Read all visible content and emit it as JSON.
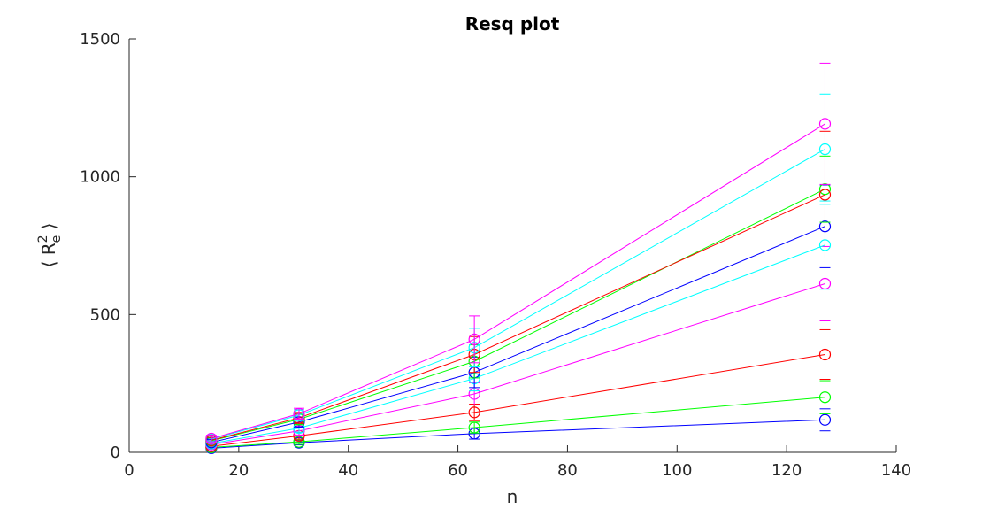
{
  "chart_data": {
    "type": "line",
    "title": "Resq plot",
    "xlabel": "n",
    "ylabel": {
      "prefix": "⟨ R",
      "superscript": "2",
      "subscript": "e",
      "suffix": " ⟩"
    },
    "xlim": [
      0,
      140
    ],
    "ylim": [
      0,
      1500
    ],
    "xticks": [
      0,
      20,
      40,
      60,
      80,
      100,
      120,
      140
    ],
    "yticks": [
      0,
      500,
      1000,
      1500
    ],
    "grid": false,
    "marker": "circle",
    "error_bars": true,
    "x": [
      15,
      31,
      63,
      127
    ],
    "series": [
      {
        "color": "#0000ff",
        "values": [
          15,
          35,
          68,
          118
        ],
        "errors": [
          5,
          8,
          20,
          40
        ]
      },
      {
        "color": "#00ff00",
        "values": [
          18,
          38,
          90,
          200
        ],
        "errors": [
          6,
          9,
          20,
          60
        ]
      },
      {
        "color": "#ff0000",
        "values": [
          22,
          60,
          145,
          355
        ],
        "errors": [
          7,
          12,
          30,
          90
        ]
      },
      {
        "color": "#ff00ff",
        "values": [
          28,
          78,
          212,
          612
        ],
        "errors": [
          8,
          15,
          40,
          135
        ]
      },
      {
        "color": "#00ffff",
        "values": [
          32,
          88,
          268,
          752
        ],
        "errors": [
          9,
          15,
          45,
          160
        ]
      },
      {
        "color": "#0000ff",
        "values": [
          36,
          110,
          290,
          820
        ],
        "errors": [
          10,
          18,
          55,
          150
        ]
      },
      {
        "color": "#00ff00",
        "values": [
          42,
          120,
          330,
          955
        ],
        "errors": [
          10,
          20,
          60,
          120
        ]
      },
      {
        "color": "#ff0000",
        "values": [
          44,
          125,
          355,
          935
        ],
        "errors": [
          10,
          20,
          65,
          230
        ]
      },
      {
        "color": "#00ffff",
        "values": [
          48,
          135,
          380,
          1100
        ],
        "errors": [
          12,
          20,
          70,
          200
        ]
      },
      {
        "color": "#ff00ff",
        "values": [
          50,
          140,
          410,
          1192
        ],
        "errors": [
          12,
          20,
          85,
          220
        ]
      }
    ]
  }
}
